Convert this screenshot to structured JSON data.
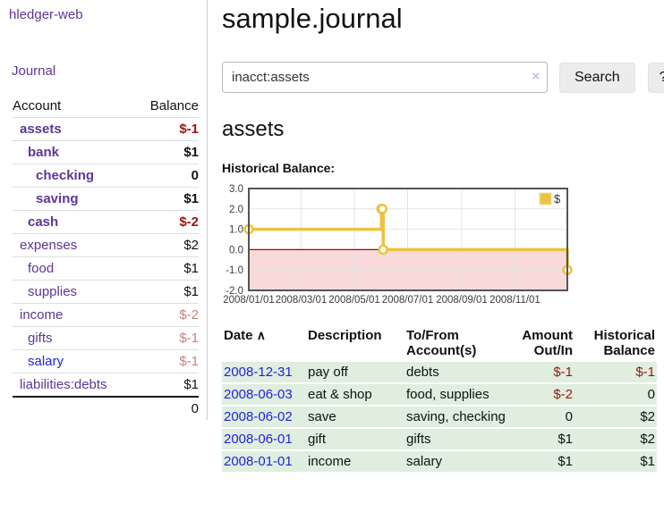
{
  "app": {
    "title": "hledger-web"
  },
  "colors": {
    "link_purple": "#5f3596",
    "link_blue": "#2323dd",
    "negative_strong": "#9c1414",
    "negative_dim": "#c5807f",
    "row_green": "#dfeedf",
    "series_gold": "#edc240"
  },
  "sidebar": {
    "journal_link": "Journal",
    "accounts_table": {
      "headers": [
        "Account",
        "Balance"
      ],
      "rows": [
        {
          "name": "assets",
          "level": 1,
          "bold": true,
          "link": "purple",
          "balance": "$-1",
          "balance_class": "neg"
        },
        {
          "name": "bank",
          "level": 2,
          "bold": true,
          "link": "purple",
          "balance": "$1",
          "balance_class": ""
        },
        {
          "name": "checking",
          "level": 3,
          "bold": true,
          "link": "purple",
          "balance": "0",
          "balance_class": ""
        },
        {
          "name": "saving",
          "level": 3,
          "bold": true,
          "link": "purple",
          "balance": "$1",
          "balance_class": ""
        },
        {
          "name": "cash",
          "level": 2,
          "bold": true,
          "link": "purple",
          "balance": "$-2",
          "balance_class": "neg"
        },
        {
          "name": "expenses",
          "level": 1,
          "bold": false,
          "link": "purple",
          "balance": "$2",
          "balance_class": ""
        },
        {
          "name": "food",
          "level": 2,
          "bold": false,
          "link": "purple",
          "balance": "$1",
          "balance_class": ""
        },
        {
          "name": "supplies",
          "level": 2,
          "bold": false,
          "link": "purple",
          "balance": "$1",
          "balance_class": ""
        },
        {
          "name": "income",
          "level": 1,
          "bold": false,
          "link": "purple",
          "balance": "$-2",
          "balance_class": "negdim"
        },
        {
          "name": "gifts",
          "level": 2,
          "bold": false,
          "link": "purple",
          "balance": "$-1",
          "balance_class": "negdim"
        },
        {
          "name": "salary",
          "level": 2,
          "bold": false,
          "link": "blue",
          "balance": "$-1",
          "balance_class": "negdim"
        },
        {
          "name": "liabilities:debts",
          "level": 1,
          "bold": false,
          "link": "purple",
          "balance": "$1",
          "balance_class": ""
        }
      ],
      "total": "0"
    }
  },
  "main": {
    "title": "sample.journal",
    "search": {
      "value": "inacct:assets",
      "clear_icon": "×",
      "search_label": "Search",
      "help_label": "?"
    },
    "account_heading": "assets",
    "chart_label": "Historical Balance:"
  },
  "chart_data": {
    "type": "line",
    "step": true,
    "title": "Historical Balance:",
    "series": [
      {
        "name": "$",
        "color": "#edc240",
        "x": [
          "2008-01-01",
          "2008-06-01",
          "2008-06-02",
          "2008-06-03",
          "2008-12-31"
        ],
        "y": [
          1,
          2,
          2,
          0,
          -1
        ]
      }
    ],
    "ylim": [
      -2,
      3
    ],
    "yticks": [
      3,
      2,
      1,
      0,
      -1,
      -2
    ],
    "xticks": [
      "2008/01/01",
      "2008/03/01",
      "2008/05/01",
      "2008/07/01",
      "2008/09/01",
      "2008/11/01"
    ],
    "xrange": [
      "2008-01-01",
      "2008-12-31"
    ],
    "grid": true,
    "zero_line_color": "#a40000",
    "negative_region_color": "#f9dada",
    "legend": {
      "label": "$",
      "position": "top-right"
    }
  },
  "register_table": {
    "headers": {
      "date": "Date",
      "description": "Description",
      "accounts": "To/From Account(s)",
      "amount": "Amount Out/In",
      "balance": "Historical Balance"
    },
    "sort_icon": "∧",
    "rows": [
      {
        "date": "2008-12-31",
        "description": "pay off",
        "accounts": "debts",
        "amount": "$-1",
        "amount_negative": true,
        "balance": "$-1",
        "balance_negative": true
      },
      {
        "date": "2008-06-03",
        "description": "eat & shop",
        "accounts": "food, supplies",
        "amount": "$-2",
        "amount_negative": true,
        "balance": "0",
        "balance_negative": false
      },
      {
        "date": "2008-06-02",
        "description": "save",
        "accounts": "saving, checking",
        "amount": "0",
        "amount_negative": false,
        "balance": "$2",
        "balance_negative": false
      },
      {
        "date": "2008-06-01",
        "description": "gift",
        "accounts": "gifts",
        "amount": "$1",
        "amount_negative": false,
        "balance": "$2",
        "balance_negative": false
      },
      {
        "date": "2008-01-01",
        "description": "income",
        "accounts": "salary",
        "amount": "$1",
        "amount_negative": false,
        "balance": "$1",
        "balance_negative": false
      }
    ]
  }
}
